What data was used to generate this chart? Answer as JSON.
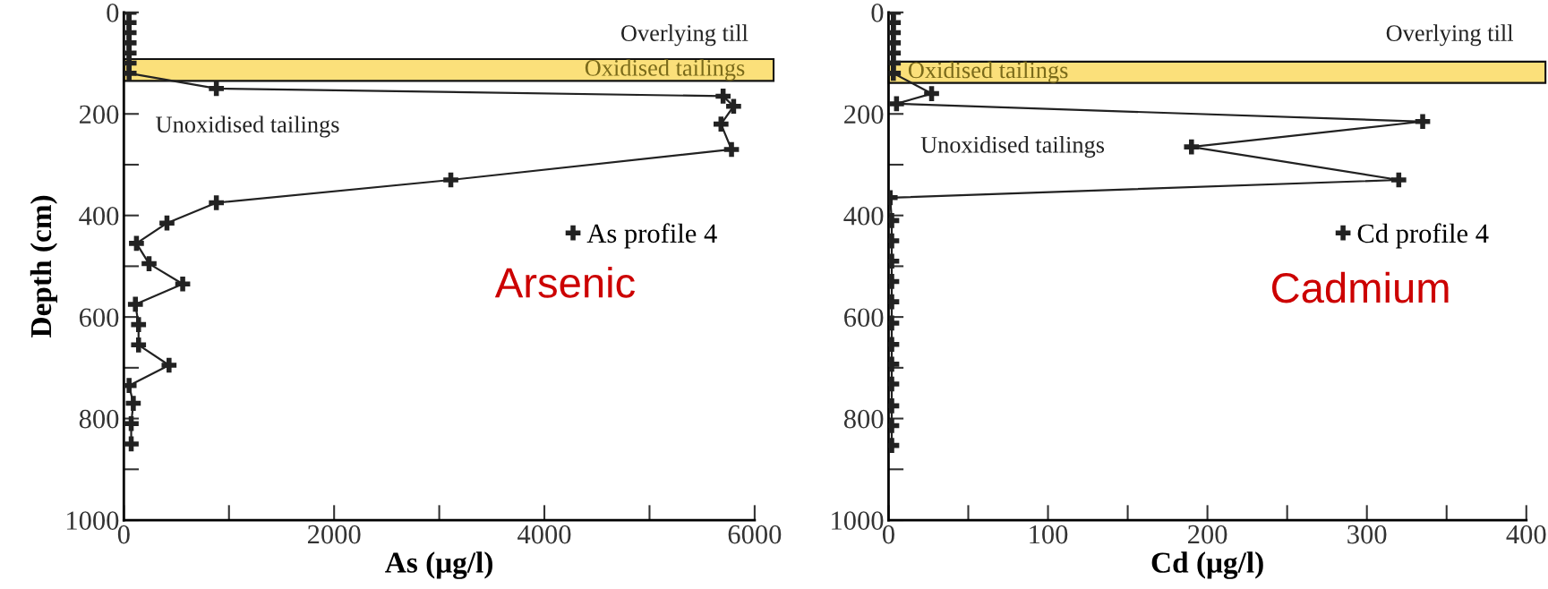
{
  "chart_data": [
    {
      "type": "line",
      "title": "Arsenic",
      "xlabel": "As (μg/l)",
      "ylabel": "Depth (cm)",
      "marker": "cross",
      "legend": "right",
      "series": [
        {
          "name": "As profile 4",
          "color": "#222222",
          "x": [
            50,
            50,
            50,
            50,
            50,
            50,
            50,
            880,
            5700,
            5800,
            5680,
            5780,
            3110,
            880,
            410,
            120,
            240,
            560,
            110,
            140,
            140,
            430,
            50,
            90,
            70,
            70
          ],
          "values": [
            0,
            20,
            40,
            60,
            80,
            100,
            120,
            150,
            165,
            185,
            220,
            270,
            330,
            375,
            415,
            455,
            495,
            535,
            575,
            615,
            655,
            695,
            735,
            770,
            810,
            850
          ]
        }
      ],
      "xlim": [
        0,
        6000
      ],
      "xticks": [
        0,
        2000,
        4000,
        6000
      ],
      "ylim": [
        1000,
        0
      ],
      "yticks": [
        0,
        200,
        400,
        600,
        800,
        1000
      ],
      "bands": [
        {
          "axis": "y",
          "from": 92,
          "to": 135,
          "label": "Oxidised tailings",
          "color": "#fbe07a"
        }
      ],
      "annotations": [
        "Overlying till",
        "Unoxidised tailings"
      ]
    },
    {
      "type": "line",
      "title": "Cadmium",
      "xlabel": "Cd (μg/l)",
      "marker": "cross",
      "legend": "right",
      "series": [
        {
          "name": "Cd profile 4",
          "color": "#222222",
          "x": [
            3,
            3,
            3,
            3,
            3,
            3,
            3,
            27,
            5,
            335,
            190,
            320,
            1,
            2,
            2,
            2,
            2,
            2,
            2,
            2,
            2,
            2,
            2,
            2,
            2
          ],
          "values": [
            0,
            20,
            40,
            60,
            80,
            100,
            120,
            160,
            180,
            215,
            265,
            330,
            365,
            410,
            450,
            490,
            530,
            570,
            612,
            654,
            693,
            732,
            775,
            814,
            853
          ]
        }
      ],
      "xlim": [
        0,
        400
      ],
      "xticks": [
        0,
        100,
        200,
        300,
        400
      ],
      "ylim": [
        1000,
        0
      ],
      "yticks": [
        0,
        200,
        400,
        600,
        800,
        1000
      ],
      "bands": [
        {
          "axis": "y",
          "from": 97,
          "to": 139,
          "label": "Oxidised tailings",
          "color": "#fbe07a"
        }
      ],
      "annotations": [
        "Overlying till",
        "Unoxidised tailings"
      ]
    }
  ]
}
